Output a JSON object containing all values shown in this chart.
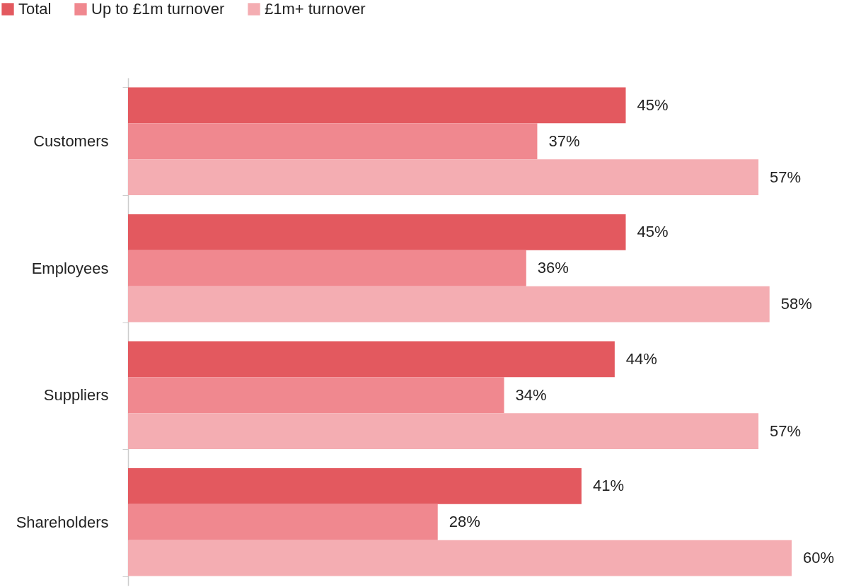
{
  "chart_data": {
    "type": "bar",
    "orientation": "horizontal",
    "legend": "top left",
    "categories": [
      "Customers",
      "Employees",
      "Suppliers",
      "Shareholders"
    ],
    "series": [
      {
        "name": "Total",
        "color": "#e3595f",
        "values": [
          45,
          45,
          44,
          41
        ],
        "value_labels": [
          "45%",
          "45%",
          "44%",
          "41%"
        ]
      },
      {
        "name": "Up to £1m turnover",
        "color": "#f0888f",
        "values": [
          37,
          36,
          34,
          28
        ],
        "value_labels": [
          "37%",
          "36%",
          "34%",
          "28%"
        ]
      },
      {
        "name": "£1m+ turnover",
        "color": "#f4adb2",
        "values": [
          57,
          58,
          57,
          60
        ],
        "value_labels": [
          "57%",
          "58%",
          "57%",
          "60%"
        ]
      }
    ]
  }
}
